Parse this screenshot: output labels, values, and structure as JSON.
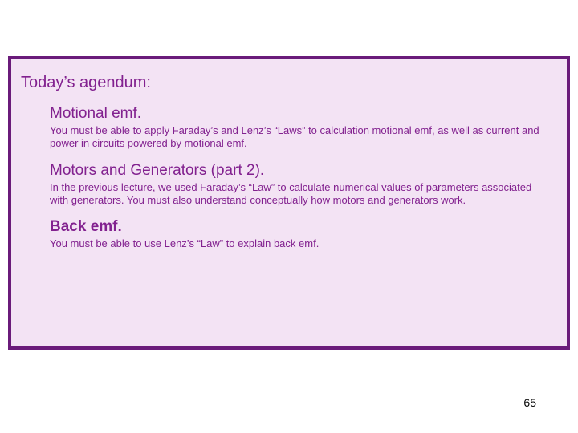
{
  "colors": {
    "border": "#6a1b7a",
    "panel_bg": "#f3e3f4",
    "text": "#82218f"
  },
  "heading": "Today’s agendum:",
  "sections": [
    {
      "title": "Motional emf.",
      "bold": false,
      "body": "You must be able to apply Faraday’s and Lenz’s “Laws” to calculation motional emf, as well as current and power in circuits powered by motional emf."
    },
    {
      "title": "Motors and Generators (part 2).",
      "bold": false,
      "body": "In the previous lecture, we used Faraday’s “Law” to calculate numerical values of parameters associated with generators. You must also understand conceptually how motors and generators work."
    },
    {
      "title": "Back emf.",
      "bold": true,
      "body": "You must be able to use Lenz’s “Law” to explain back emf."
    }
  ],
  "page_number": "65"
}
